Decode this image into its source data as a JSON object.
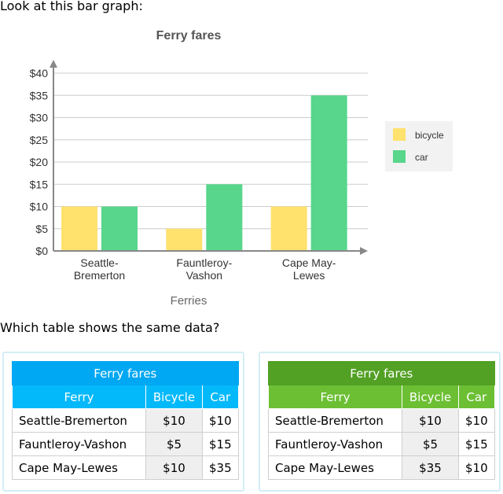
{
  "prompt_top": "Look at this bar graph:",
  "prompt_question": "Which table shows the same data?",
  "colors": {
    "bicycle": "#ffe16d",
    "car": "#57d68c",
    "grid": "#cccccc",
    "axis": "#888888"
  },
  "chart_data": {
    "type": "bar",
    "title": "Ferry fares",
    "xlabel": "Ferries",
    "ylabel": "",
    "categories": [
      "Seattle-Bremerton",
      "Fauntleroy-Vashon",
      "Cape May-Lewes"
    ],
    "category_lines": [
      [
        "Seattle-",
        "Bremerton"
      ],
      [
        "Fauntleroy-",
        "Vashon"
      ],
      [
        "Cape May-",
        "Lewes"
      ]
    ],
    "series": [
      {
        "name": "bicycle",
        "values": [
          10,
          5,
          10
        ]
      },
      {
        "name": "car",
        "values": [
          10,
          15,
          35
        ]
      }
    ],
    "ylim": [
      0,
      40
    ],
    "yticks": [
      "$0",
      "$5",
      "$10",
      "$15",
      "$20",
      "$25",
      "$30",
      "$35",
      "$40"
    ],
    "grid": true,
    "legend_position": "right"
  },
  "options": [
    {
      "title": "Ferry fares",
      "headers": [
        "Ferry",
        "Bicycle",
        "Car"
      ],
      "rows": [
        [
          "Seattle-Bremerton",
          "$10",
          "$10"
        ],
        [
          "Fauntleroy-Vashon",
          "$5",
          "$15"
        ],
        [
          "Cape May-Lewes",
          "$10",
          "$35"
        ]
      ]
    },
    {
      "title": "Ferry fares",
      "headers": [
        "Ferry",
        "Bicycle",
        "Car"
      ],
      "rows": [
        [
          "Seattle-Bremerton",
          "$10",
          "$10"
        ],
        [
          "Fauntleroy-Vashon",
          "$5",
          "$15"
        ],
        [
          "Cape May-Lewes",
          "$35",
          "$10"
        ]
      ]
    }
  ]
}
